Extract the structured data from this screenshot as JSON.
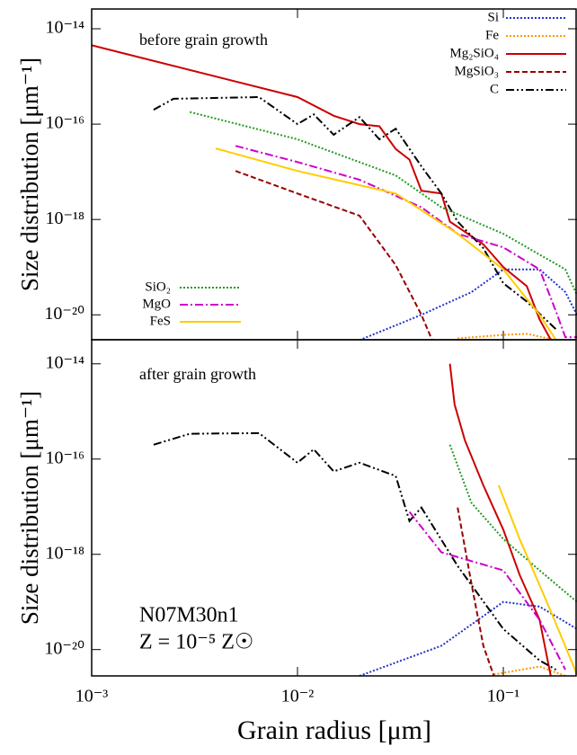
{
  "chart_data": [
    {
      "type": "line",
      "log_x": true,
      "log_y": true,
      "xlim": [
        0.001,
        0.228
      ],
      "ylim": [
        3e-21,
        2.6e-14
      ],
      "yticks": [
        {
          "value": 1e-14,
          "label": "10⁻¹⁴"
        },
        {
          "value": 1e-16,
          "label": "10⁻¹⁶"
        },
        {
          "value": 1e-18,
          "label": "10⁻¹⁸"
        },
        {
          "value": 1e-20,
          "label": "10⁻²⁰"
        }
      ],
      "y_label": "Size distribution [μm⁻¹]",
      "annotations": [
        "before grain growth"
      ],
      "series": [
        {
          "name": "Si",
          "color": "#2233cc",
          "dash": "dotted",
          "legend": "upper right",
          "x": [
            0.02,
            0.04,
            0.07,
            0.1,
            0.15,
            0.2,
            0.228
          ],
          "values": [
            2.95e-21,
            1e-20,
            3e-20,
            9e-20,
            9e-20,
            3e-20,
            1e-20
          ]
        },
        {
          "name": "Fe",
          "color": "#ff9900",
          "dash": "dotted",
          "legend": "upper right",
          "x": [
            0.06,
            0.1,
            0.13,
            0.18
          ],
          "values": [
            3.2e-21,
            3.8e-21,
            4e-21,
            2.95e-21
          ]
        },
        {
          "name": "Mg₂SiO₄",
          "color": "#cc0000",
          "dash": "solid",
          "legend": "upper right",
          "x": [
            0.001,
            0.01,
            0.015,
            0.02,
            0.025,
            0.03,
            0.035,
            0.04,
            0.05,
            0.055,
            0.06,
            0.08,
            0.1,
            0.13,
            0.15,
            0.17
          ],
          "values": [
            4.5e-15,
            3.7e-16,
            1.5e-16,
            1e-16,
            9e-17,
            3e-17,
            1.8e-17,
            4e-18,
            3.5e-18,
            9e-19,
            7e-19,
            3e-19,
            1e-19,
            4e-20,
            8e-21,
            3e-21
          ]
        },
        {
          "name": "MgSiO₃",
          "color": "#990000",
          "dash": "dashed",
          "legend": "upper right",
          "x": [
            0.005,
            0.01,
            0.02,
            0.03,
            0.04,
            0.045
          ],
          "values": [
            1.04e-17,
            3.5e-18,
            1.2e-18,
            1.1e-19,
            1e-20,
            3e-21
          ]
        },
        {
          "name": "C",
          "color": "#000000",
          "dash": "dashdotdot",
          "legend": "upper right",
          "x": [
            0.002,
            0.0025,
            0.0065,
            0.01,
            0.012,
            0.015,
            0.02,
            0.025,
            0.03,
            0.04,
            0.05,
            0.06,
            0.08,
            0.1,
            0.13,
            0.18
          ],
          "values": [
            2e-16,
            3.4e-16,
            3.7e-16,
            1e-16,
            1.6e-16,
            6e-17,
            1.4e-16,
            4.8e-17,
            8e-17,
            1.3e-17,
            3.5e-18,
            9e-19,
            2.5e-19,
            4.6e-20,
            1.9e-20,
            5e-21
          ]
        },
        {
          "name": "SiO₂",
          "color": "#229922",
          "dash": "dotted",
          "legend": "lower left",
          "x": [
            0.003,
            0.01,
            0.03,
            0.05,
            0.1,
            0.2,
            0.228
          ],
          "values": [
            1.8e-16,
            4.8e-17,
            8.4e-18,
            1.8e-18,
            5e-19,
            9e-20,
            2.6e-20
          ]
        },
        {
          "name": "MgO",
          "color": "#cc00cc",
          "dash": "dashdot",
          "legend": "lower left",
          "x": [
            0.005,
            0.01,
            0.02,
            0.04,
            0.06,
            0.1,
            0.15,
            0.18,
            0.2,
            0.228
          ],
          "values": [
            3.5e-17,
            1.6e-17,
            6.8e-18,
            1.8e-18,
            5e-19,
            2.6e-19,
            9e-20,
            1.2e-20,
            3.4e-21,
            3.4e-21
          ]
        },
        {
          "name": "FeS",
          "color": "#ffcc00",
          "dash": "solid",
          "legend": "lower left",
          "x": [
            0.004,
            0.01,
            0.03,
            0.06,
            0.1,
            0.15,
            0.18
          ],
          "values": [
            3.1e-17,
            1.04e-17,
            3.5e-18,
            5e-19,
            9e-20,
            1e-20,
            3e-21
          ]
        }
      ]
    },
    {
      "type": "line",
      "log_x": true,
      "log_y": true,
      "xlim": [
        0.001,
        0.228
      ],
      "ylim": [
        2.8e-21,
        3.2e-14
      ],
      "xticks": [
        {
          "value": 0.001,
          "label": "10⁻³"
        },
        {
          "value": 0.01,
          "label": "10⁻²"
        },
        {
          "value": 0.1,
          "label": "10⁻¹"
        }
      ],
      "yticks": [
        {
          "value": 1e-14,
          "label": "10⁻¹⁴"
        },
        {
          "value": 1e-16,
          "label": "10⁻¹⁶"
        },
        {
          "value": 1e-18,
          "label": "10⁻¹⁸"
        },
        {
          "value": 1e-20,
          "label": "10⁻²⁰"
        }
      ],
      "x_label": "Grain radius [μm]",
      "y_label": "Size distribution [μm⁻¹]",
      "annotations": [
        "after grain growth",
        "N07M30n1",
        "Z = 10⁻⁵ Z☉"
      ],
      "series": [
        {
          "color": "#2233cc",
          "dash": "dotted",
          "x": [
            0.02,
            0.05,
            0.1,
            0.15,
            0.228
          ],
          "values": [
            2.8e-21,
            1.2e-20,
            1e-19,
            8e-20,
            2.7e-20
          ]
        },
        {
          "color": "#ff9900",
          "dash": "dotted",
          "x": [
            0.09,
            0.15,
            0.2
          ],
          "values": [
            3e-21,
            4.4e-21,
            2.8e-21
          ]
        },
        {
          "color": "#cc0000",
          "dash": "solid",
          "x": [
            0.055,
            0.058,
            0.065,
            0.08,
            0.1,
            0.12,
            0.15,
            0.17
          ],
          "values": [
            1e-14,
            1.4e-15,
            2.5e-16,
            2.8e-17,
            3.3e-18,
            3.7e-19,
            4.2e-20,
            2.8e-21
          ]
        },
        {
          "color": "#990000",
          "dash": "dashed",
          "x": [
            0.06,
            0.07,
            0.08,
            0.09
          ],
          "values": [
            9.6e-18,
            2.4e-19,
            1.2e-20,
            2.8e-21
          ]
        },
        {
          "color": "#000000",
          "dash": "dashdotdot",
          "x": [
            0.002,
            0.003,
            0.0065,
            0.01,
            0.012,
            0.015,
            0.02,
            0.03,
            0.035,
            0.04,
            0.06,
            0.1,
            0.15,
            0.18
          ],
          "values": [
            2e-16,
            3.4e-16,
            3.5e-16,
            8.4e-17,
            1.6e-16,
            5.5e-17,
            8.4e-17,
            4.4e-17,
            5e-18,
            9.6e-18,
            5.7e-19,
            2.7e-20,
            5.9e-21,
            3.8e-21
          ]
        },
        {
          "color": "#229922",
          "dash": "dotted",
          "x": [
            0.055,
            0.07,
            0.1,
            0.15,
            0.228
          ],
          "values": [
            2e-16,
            1.2e-17,
            2.1e-18,
            4.6e-19,
            1e-19
          ]
        },
        {
          "color": "#cc00cc",
          "dash": "dashdot",
          "x": [
            0.035,
            0.05,
            0.1,
            0.15,
            0.2
          ],
          "values": [
            7.8e-18,
            1.1e-18,
            4.6e-19,
            4.2e-20,
            3.8e-21
          ]
        },
        {
          "color": "#ffcc00",
          "dash": "solid",
          "x": [
            0.095,
            0.12,
            0.17,
            0.228
          ],
          "values": [
            2.8e-17,
            2.1e-18,
            6.4e-20,
            3e-21
          ]
        }
      ]
    }
  ]
}
